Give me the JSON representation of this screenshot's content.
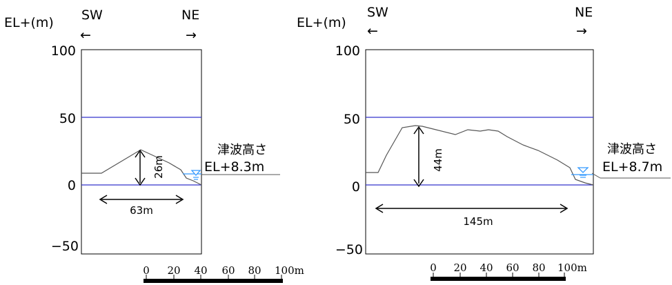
{
  "panels": [
    {
      "id": "left",
      "y_axis_label": "EL+(m)",
      "dir_left": {
        "label": "SW",
        "arrow": "←"
      },
      "dir_right": {
        "label": "NE",
        "arrow": "→"
      },
      "y_ticks": [
        "100",
        "50",
        "0",
        "−50"
      ],
      "tsunami": {
        "line1": "津波高さ",
        "line2": "EL+8.3m",
        "level_m": 8.3
      },
      "height_label": "26m",
      "width_label": "63m",
      "scale": {
        "labels": [
          "0",
          "20",
          "40",
          "60",
          "80",
          "100m"
        ]
      },
      "reference_lines_m": [
        50,
        0
      ],
      "colors": {
        "reference_line": "#3333cc",
        "water_symbol": "#3399ff",
        "terrain": "#555555"
      }
    },
    {
      "id": "right",
      "y_axis_label": "EL+(m)",
      "dir_left": {
        "label": "SW",
        "arrow": "←"
      },
      "dir_right": {
        "label": "NE",
        "arrow": "→"
      },
      "y_ticks": [
        "100",
        "50",
        "0",
        "−50"
      ],
      "tsunami": {
        "line1": "津波高さ",
        "line2": "EL+8.7m",
        "level_m": 8.7
      },
      "height_label": "44m",
      "width_label": "145m",
      "scale": {
        "labels": [
          "0",
          "20",
          "40",
          "60",
          "80",
          "100m"
        ]
      },
      "reference_lines_m": [
        50,
        0
      ],
      "colors": {
        "reference_line": "#3333cc",
        "water_symbol": "#3399ff",
        "terrain": "#555555"
      }
    }
  ]
}
